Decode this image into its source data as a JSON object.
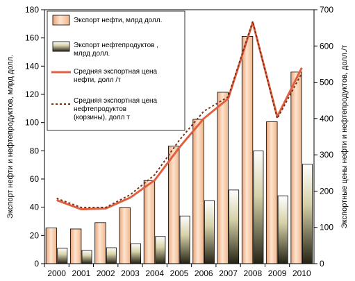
{
  "chart_data": {
    "type": "bar",
    "categories": [
      "2000",
      "2001",
      "2002",
      "2003",
      "2004",
      "2005",
      "2006",
      "2007",
      "2008",
      "2009",
      "2010"
    ],
    "ylabel": "Экспорт нефти и нефтепродуктов, млрд долл.",
    "y2label": "Экспортные цены нефти и нефтепродуктов, долл./т",
    "ylim": [
      0,
      180
    ],
    "y2lim": [
      0,
      700
    ],
    "yticks": [
      "0",
      "20",
      "40",
      "60",
      "80",
      "100",
      "120",
      "140",
      "160",
      "180"
    ],
    "y2ticks": [
      "0",
      "100",
      "200",
      "300",
      "400",
      "500",
      "600",
      "700"
    ],
    "grid": false,
    "legend_position": "top-left",
    "series": [
      {
        "name": "Экспорт нефти, млрд долл.",
        "type": "bar",
        "axis": "left",
        "values": [
          25.3,
          24.6,
          29.1,
          39.7,
          58.9,
          83.4,
          102.3,
          121.5,
          161.1,
          100.6,
          135.8
        ]
      },
      {
        "name_lines": [
          "Экспорт нефтепродуктов ,",
          "млрд долл."
        ],
        "type": "bar",
        "axis": "left",
        "values": [
          10.9,
          9.4,
          11.3,
          14.1,
          19.3,
          33.8,
          44.7,
          52.2,
          79.9,
          48.1,
          70.5
        ]
      },
      {
        "name_lines": [
          "Средняя экспортная цена",
          "нефти, долл /т"
        ],
        "type": "line",
        "axis": "right",
        "color": "#e06040",
        "values": [
          175,
          150,
          152,
          182,
          230,
          320,
          400,
          455,
          665,
          405,
          540
        ]
      },
      {
        "name_lines": [
          "Средняя экспортная цена",
          "нефтепродуктов",
          "(корзины), долл  т"
        ],
        "type": "line",
        "dashed": true,
        "axis": "right",
        "color": "#7a3018",
        "values": [
          180,
          155,
          155,
          190,
          245,
          340,
          420,
          460,
          668,
          400,
          525
        ]
      }
    ]
  }
}
